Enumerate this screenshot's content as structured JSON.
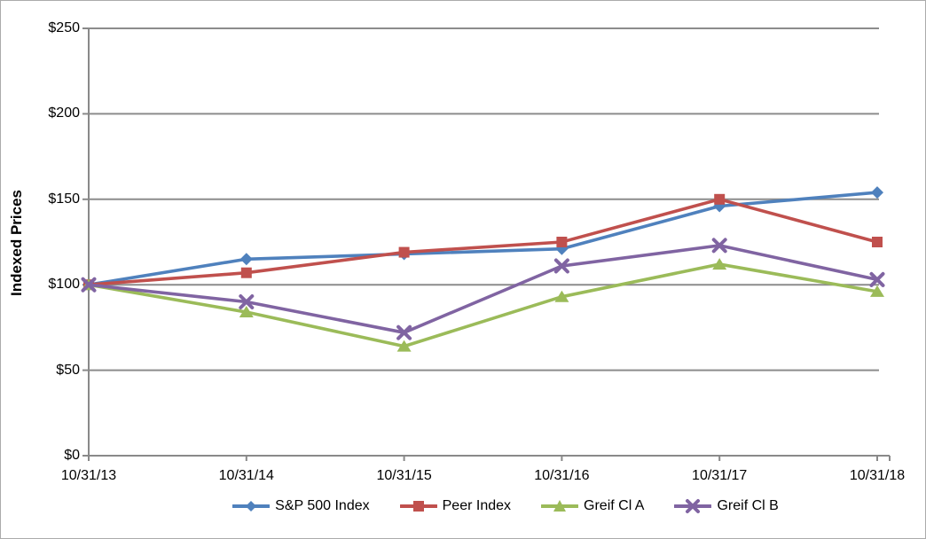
{
  "chart_data": {
    "type": "line",
    "title": "",
    "xlabel": "",
    "ylabel": "Indexed Prices",
    "x": [
      "10/31/13",
      "10/31/14",
      "10/31/15",
      "10/31/16",
      "10/31/17",
      "10/31/18"
    ],
    "ylim": [
      0,
      250
    ],
    "yticks": [
      {
        "value": 0,
        "label": "$0"
      },
      {
        "value": 50,
        "label": "$50"
      },
      {
        "value": 100,
        "label": "$100"
      },
      {
        "value": 150,
        "label": "$150"
      },
      {
        "value": 200,
        "label": "$200"
      },
      {
        "value": 250,
        "label": "$250"
      }
    ],
    "grid": true,
    "legend_position": "bottom",
    "series": [
      {
        "name": "S&P 500 Index",
        "marker": "diamond",
        "color": "#4F81BD",
        "values": [
          100,
          115,
          118,
          121,
          146,
          154
        ]
      },
      {
        "name": "Peer Index",
        "marker": "square",
        "color": "#C0504D",
        "values": [
          100,
          107,
          119,
          125,
          150,
          125
        ]
      },
      {
        "name": "Greif Cl A",
        "marker": "triangle",
        "color": "#9BBB59",
        "values": [
          100,
          84,
          64,
          93,
          112,
          96
        ]
      },
      {
        "name": "Greif Cl B",
        "marker": "x",
        "color": "#8064A2",
        "values": [
          100,
          90,
          72,
          111,
          123,
          103
        ]
      }
    ]
  },
  "style": {
    "axis_color": "#898989",
    "grid_color": "#8c8c8c",
    "text_color": "#000000",
    "border_color": "#ababab"
  }
}
